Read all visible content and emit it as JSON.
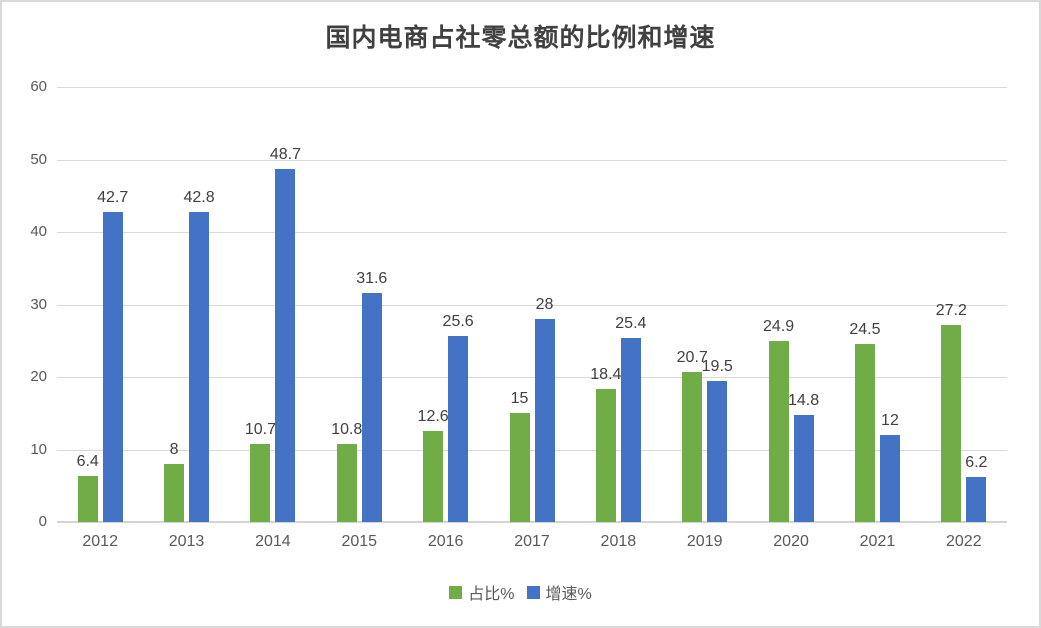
{
  "chart_data": {
    "type": "bar",
    "title": "国内电商占社零总额的比例和增速",
    "categories": [
      "2012",
      "2013",
      "2014",
      "2015",
      "2016",
      "2017",
      "2018",
      "2019",
      "2020",
      "2021",
      "2022"
    ],
    "series": [
      {
        "name": "占比%",
        "color": "#70AD47",
        "values": [
          6.4,
          8,
          10.7,
          10.8,
          12.6,
          15,
          18.4,
          20.7,
          24.9,
          24.5,
          27.2
        ],
        "labels": [
          "6.4",
          "8",
          "10.7",
          "10.8",
          "12.6",
          "15",
          "18.4",
          "20.7",
          "24.9",
          "24.5",
          "27.2"
        ]
      },
      {
        "name": "增速%",
        "color": "#4472C4",
        "values": [
          42.7,
          42.8,
          48.7,
          31.6,
          25.6,
          28,
          25.4,
          19.5,
          14.8,
          12,
          6.2
        ],
        "labels": [
          "42.7",
          "42.8",
          "48.7",
          "31.6",
          "25.6",
          "28",
          "25.4",
          "19.5",
          "14.8",
          "12",
          "6.2"
        ]
      }
    ],
    "xlabel": "",
    "ylabel": "",
    "ylim": [
      0,
      60
    ],
    "yticks": [
      "0",
      "10",
      "20",
      "30",
      "40",
      "50",
      "60"
    ],
    "grid": true,
    "legend_position": "bottom"
  },
  "style": {
    "background": "#ffffff",
    "border_color": "#d9d9d9",
    "grid_color": "#d9d9d9",
    "axis_color": "#d4d4d4",
    "tick_label_color": "#595959",
    "data_label_color": "#404040",
    "title_color": "#404040"
  }
}
